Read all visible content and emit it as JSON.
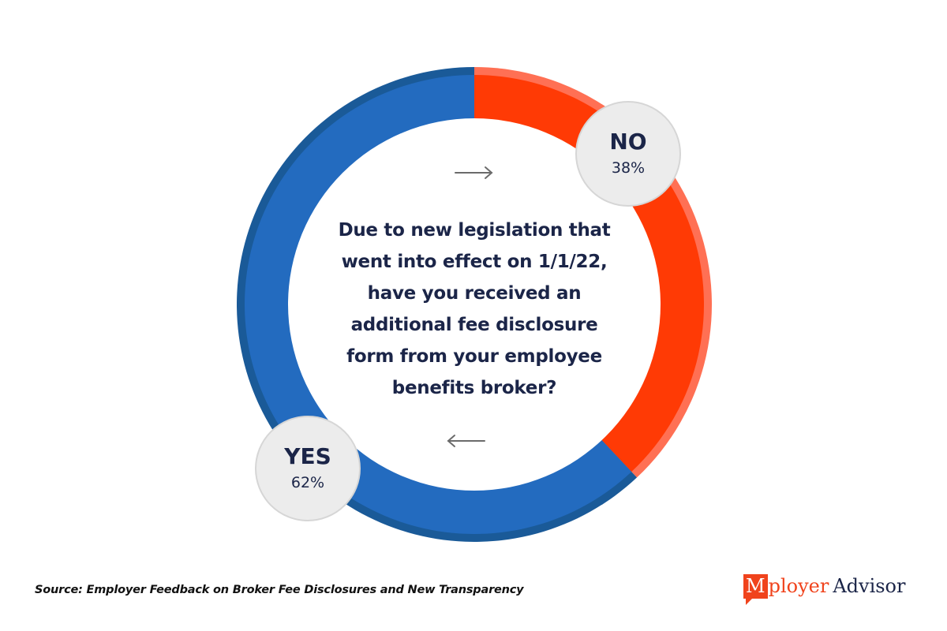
{
  "chart_data": {
    "type": "pie",
    "style": "donut",
    "title": "Due to new legislation that went into effect on 1/1/22, have you received an additional fee disclosure form from your employee benefits broker?",
    "title_lines": [
      "Due to new legislation that",
      "went into effect on 1/1/22,",
      "have you received an",
      "additional fee disclosure",
      "form from your employee",
      "benefits broker?"
    ],
    "slices": [
      {
        "label": "NO",
        "value": 38,
        "display": "38%",
        "color": "#ff3a05",
        "rim_color": "#ff7054"
      },
      {
        "label": "YES",
        "value": 62,
        "display": "62%",
        "color": "#236bbf",
        "rim_color": "#1a5a98"
      }
    ],
    "start": "top",
    "direction": "clockwise",
    "unit": "%"
  },
  "arrows": {
    "top": "right-arrow",
    "bottom": "left-arrow"
  },
  "footer": {
    "source": "Source: Employer Feedback on Broker Fee Disclosures and New Transparency"
  },
  "logo": {
    "m": "M",
    "ployer": "ployer",
    "advisor": "Advisor"
  }
}
